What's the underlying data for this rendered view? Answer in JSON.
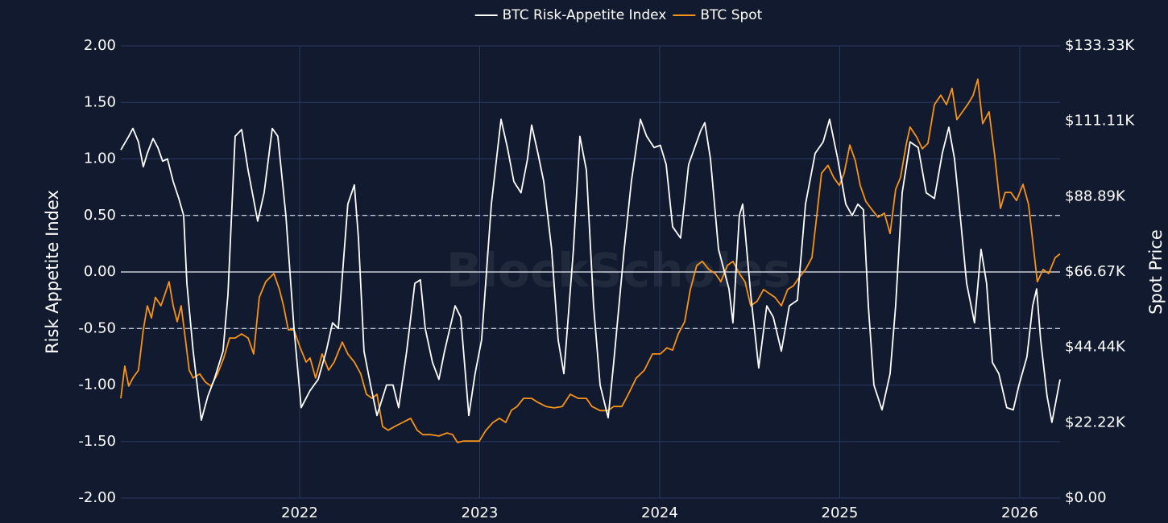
{
  "chart_data": {
    "type": "line",
    "watermark": "BlockScholes",
    "y_label": "Risk Appetite Index",
    "y2_label": "Spot Price",
    "xlim": [
      2021.007,
      2026.224
    ],
    "xticks": [
      2022,
      2023,
      2024,
      2025,
      2026
    ],
    "ylim": [
      -2,
      2
    ],
    "yticks": [
      {
        "value": -2,
        "label": "-2.00"
      },
      {
        "value": -1.5,
        "label": "-1.50"
      },
      {
        "value": -1,
        "label": "-1.00"
      },
      {
        "value": -0.5,
        "label": "-0.50"
      },
      {
        "value": 0,
        "label": "0.00"
      },
      {
        "value": 0.5,
        "label": "0.50"
      },
      {
        "value": 1,
        "label": "1.00"
      },
      {
        "value": 1.5,
        "label": "1.50"
      },
      {
        "value": 2,
        "label": "2.00"
      }
    ],
    "y2lim": [
      0,
      133333
    ],
    "y2ticks": [
      {
        "value": 0,
        "label": "$0.00"
      },
      {
        "value": 22222,
        "label": "$22.22K"
      },
      {
        "value": 44444,
        "label": "$44.44K"
      },
      {
        "value": 66667,
        "label": "$66.67K"
      },
      {
        "value": 88889,
        "label": "$88.89K"
      },
      {
        "value": 111111,
        "label": "$111.11K"
      },
      {
        "value": 133333,
        "label": "$133.33K"
      }
    ],
    "grid": true,
    "reference_lines": [
      {
        "value": -0.5,
        "dashed": true
      },
      {
        "value": 0,
        "dashed": false
      },
      {
        "value": 0.5,
        "dashed": true
      }
    ],
    "legend": "top",
    "series": [
      {
        "name": "BTC Risk-Appetite Index",
        "color": "#ffffff",
        "x": [
          2021.007,
          2021.051,
          2021.074,
          2021.105,
          2021.132,
          2021.154,
          2021.186,
          2021.213,
          2021.239,
          2021.266,
          2021.298,
          2021.329,
          2021.356,
          2021.374,
          2021.409,
          2021.454,
          2021.49,
          2021.526,
          2021.575,
          2021.602,
          2021.642,
          2021.678,
          2021.714,
          2021.767,
          2021.803,
          2021.848,
          2021.879,
          2021.924,
          2021.969,
          2022.009,
          2022.058,
          2022.103,
          2022.148,
          2022.183,
          2022.215,
          2022.268,
          2022.304,
          2022.327,
          2022.358,
          2022.394,
          2022.43,
          2022.483,
          2022.519,
          2022.55,
          2022.595,
          2022.64,
          2022.671,
          2022.698,
          2022.738,
          2022.774,
          2022.805,
          2022.864,
          2022.895,
          2022.94,
          2022.975,
          2023.011,
          2023.065,
          2023.119,
          2023.154,
          2023.19,
          2023.23,
          2023.266,
          2023.289,
          2023.324,
          2023.356,
          2023.4,
          2023.436,
          2023.468,
          2023.521,
          2023.557,
          2023.593,
          2023.633,
          2023.669,
          2023.714,
          2023.745,
          2023.803,
          2023.843,
          2023.893,
          2023.928,
          2023.969,
          2024.004,
          2024.036,
          2024.072,
          2024.116,
          2024.161,
          2024.228,
          2024.251,
          2024.282,
          2024.327,
          2024.385,
          2024.407,
          2024.443,
          2024.461,
          2024.506,
          2024.55,
          2024.595,
          2024.631,
          2024.676,
          2024.72,
          2024.765,
          2024.81,
          2024.864,
          2024.908,
          2024.944,
          2024.989,
          2025.034,
          2025.069,
          2025.101,
          2025.132,
          2025.159,
          2025.19,
          2025.235,
          2025.28,
          2025.311,
          2025.347,
          2025.391,
          2025.436,
          2025.481,
          2025.526,
          2025.57,
          2025.606,
          2025.638,
          2025.669,
          2025.705,
          2025.749,
          2025.785,
          2025.816,
          2025.848,
          2025.884,
          2025.928,
          2025.964,
          2025.996,
          2026.04,
          2026.072,
          2026.094,
          2026.116,
          2026.152,
          2026.179,
          2026.224
        ],
        "values": [
          1.08,
          1.2,
          1.27,
          1.15,
          0.93,
          1.05,
          1.18,
          1.1,
          0.98,
          1.0,
          0.8,
          0.65,
          0.5,
          -0.1,
          -0.7,
          -1.31,
          -1.1,
          -0.95,
          -0.7,
          -0.2,
          1.2,
          1.26,
          0.9,
          0.45,
          0.7,
          1.27,
          1.2,
          0.5,
          -0.5,
          -1.2,
          -1.05,
          -0.95,
          -0.7,
          -0.45,
          -0.5,
          0.6,
          0.77,
          0.3,
          -0.7,
          -1.0,
          -1.27,
          -1.0,
          -1.0,
          -1.2,
          -0.7,
          -0.1,
          -0.07,
          -0.5,
          -0.8,
          -0.95,
          -0.7,
          -0.3,
          -0.4,
          -1.27,
          -0.9,
          -0.6,
          0.6,
          1.35,
          1.1,
          0.8,
          0.7,
          1.0,
          1.3,
          1.05,
          0.8,
          0.2,
          -0.6,
          -0.9,
          0.2,
          1.2,
          0.9,
          -0.3,
          -1.0,
          -1.29,
          -0.8,
          0.2,
          0.8,
          1.35,
          1.2,
          1.1,
          1.12,
          0.95,
          0.4,
          0.3,
          0.95,
          1.25,
          1.32,
          1.0,
          0.2,
          -0.15,
          -0.45,
          0.5,
          0.6,
          -0.2,
          -0.85,
          -0.3,
          -0.4,
          -0.7,
          -0.3,
          -0.25,
          0.6,
          1.05,
          1.15,
          1.35,
          1.0,
          0.6,
          0.5,
          0.6,
          0.55,
          -0.3,
          -1.0,
          -1.22,
          -0.9,
          -0.3,
          0.7,
          1.15,
          1.1,
          0.7,
          0.65,
          1.05,
          1.28,
          1.0,
          0.5,
          -0.1,
          -0.45,
          0.2,
          -0.1,
          -0.8,
          -0.9,
          -1.2,
          -1.22,
          -1.0,
          -0.75,
          -0.3,
          -0.15,
          -0.6,
          -1.1,
          -1.33,
          -0.95
        ]
      },
      {
        "name": "BTC Spot",
        "color": "#f7931a",
        "axis": "y2",
        "x": [
          2021.007,
          2021.029,
          2021.051,
          2021.074,
          2021.105,
          2021.132,
          2021.154,
          2021.177,
          2021.199,
          2021.23,
          2021.253,
          2021.275,
          2021.298,
          2021.32,
          2021.342,
          2021.365,
          2021.387,
          2021.409,
          2021.445,
          2021.477,
          2021.508,
          2021.544,
          2021.579,
          2021.611,
          2021.642,
          2021.678,
          2021.714,
          2021.745,
          2021.776,
          2021.812,
          2021.857,
          2021.888,
          2021.911,
          2021.937,
          2021.969,
          2022.0,
          2022.036,
          2022.058,
          2022.089,
          2022.125,
          2022.161,
          2022.192,
          2022.237,
          2022.268,
          2022.304,
          2022.34,
          2022.371,
          2022.403,
          2022.43,
          2022.461,
          2022.492,
          2022.528,
          2022.573,
          2022.617,
          2022.653,
          2022.685,
          2022.729,
          2022.774,
          2022.819,
          2022.85,
          2022.877,
          2022.908,
          2022.953,
          2022.998,
          2023.034,
          2023.074,
          2023.11,
          2023.145,
          2023.177,
          2023.208,
          2023.244,
          2023.289,
          2023.324,
          2023.369,
          2023.414,
          2023.459,
          2023.503,
          2023.548,
          2023.593,
          2023.624,
          2023.669,
          2023.714,
          2023.745,
          2023.79,
          2023.826,
          2023.87,
          2023.915,
          2023.96,
          2024.004,
          2024.04,
          2024.072,
          2024.103,
          2024.139,
          2024.17,
          2024.206,
          2024.237,
          2024.273,
          2024.309,
          2024.34,
          2024.376,
          2024.407,
          2024.443,
          2024.474,
          2024.506,
          2024.541,
          2024.577,
          2024.609,
          2024.64,
          2024.676,
          2024.711,
          2024.743,
          2024.774,
          2024.81,
          2024.846,
          2024.877,
          2024.899,
          2024.935,
          2024.966,
          2024.998,
          2025.025,
          2025.056,
          2025.087,
          2025.114,
          2025.145,
          2025.177,
          2025.213,
          2025.248,
          2025.28,
          2025.311,
          2025.338,
          2025.369,
          2025.391,
          2025.427,
          2025.459,
          2025.49,
          2025.526,
          2025.562,
          2025.593,
          2025.624,
          2025.651,
          2025.682,
          2025.714,
          2025.741,
          2025.767,
          2025.794,
          2025.83,
          2025.861,
          2025.893,
          2025.919,
          2025.951,
          2025.982,
          2026.018,
          2026.049,
          2026.072,
          2026.098,
          2026.13,
          2026.161,
          2026.197,
          2026.224
        ],
        "values": [
          29400,
          38900,
          33000,
          35400,
          37700,
          49600,
          56700,
          53100,
          59200,
          56700,
          60300,
          63800,
          56700,
          52000,
          56700,
          47200,
          37700,
          35400,
          36600,
          34200,
          33000,
          36600,
          41300,
          47200,
          47200,
          48400,
          47200,
          42500,
          59200,
          63800,
          66200,
          61500,
          56700,
          49600,
          49600,
          44800,
          40100,
          41300,
          35400,
          42500,
          37700,
          40100,
          46000,
          42500,
          40100,
          36600,
          30600,
          29400,
          30600,
          21100,
          20000,
          21100,
          22300,
          23500,
          20000,
          18700,
          18700,
          18300,
          19200,
          18700,
          16400,
          16800,
          16800,
          16800,
          19900,
          22300,
          23500,
          22300,
          25900,
          27000,
          29400,
          29400,
          28200,
          27000,
          26600,
          27000,
          30600,
          29400,
          29400,
          27000,
          25800,
          25800,
          27000,
          27000,
          30600,
          35400,
          37700,
          42500,
          42500,
          44300,
          43600,
          48400,
          52000,
          61400,
          68600,
          69800,
          67400,
          66200,
          63800,
          68600,
          69800,
          66200,
          63800,
          56700,
          58000,
          61500,
          60300,
          59200,
          56700,
          61500,
          62600,
          65000,
          67400,
          70900,
          85200,
          95800,
          98100,
          94600,
          92200,
          95800,
          104100,
          99400,
          92200,
          87500,
          85200,
          82800,
          84000,
          78000,
          91000,
          94600,
          104100,
          109400,
          106500,
          103000,
          104600,
          116000,
          118800,
          116000,
          120800,
          111600,
          113900,
          116300,
          118700,
          123500,
          110400,
          113900,
          100900,
          85400,
          90100,
          90100,
          87700,
          92500,
          86600,
          75900,
          63800,
          67400,
          66200,
          70900,
          72000
        ]
      }
    ]
  }
}
